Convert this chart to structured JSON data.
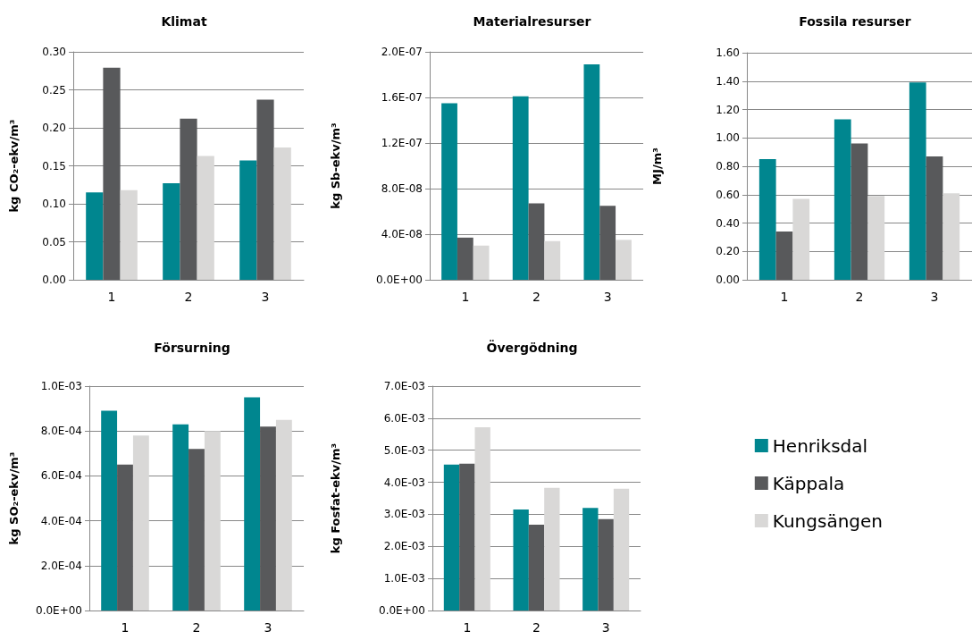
{
  "chart_data": [
    {
      "type": "bar",
      "title": "Klimat",
      "ylabel": "kg CO₂-ekv/m³",
      "categories": [
        "1",
        "2",
        "3"
      ],
      "grid": "y",
      "legend": false,
      "ylim": [
        0,
        0.3
      ],
      "yticks": [
        {
          "value": 0,
          "label": "0.00"
        },
        {
          "value": 0.05,
          "label": "0.05"
        },
        {
          "value": 0.1,
          "label": "0.10"
        },
        {
          "value": 0.15,
          "label": "0.15"
        },
        {
          "value": 0.2,
          "label": "0.20"
        },
        {
          "value": 0.25,
          "label": "0.25"
        },
        {
          "value": 0.3,
          "label": "0.30"
        }
      ],
      "series": [
        {
          "color": "#00868f",
          "values": [
            0.115,
            0.127,
            0.157
          ]
        },
        {
          "color": "#58595b",
          "values": [
            0.279,
            0.212,
            0.237
          ]
        },
        {
          "color": "#d9d8d7",
          "values": [
            0.118,
            0.163,
            0.174
          ]
        }
      ]
    },
    {
      "type": "bar",
      "title": "Materialresurser",
      "ylabel": "kg Sb-ekv/m³",
      "categories": [
        "1",
        "2",
        "3"
      ],
      "grid": "y",
      "legend": false,
      "ylim": [
        0,
        2e-07
      ],
      "yticks": [
        {
          "value": 0,
          "label": "0.0E+00"
        },
        {
          "value": 4e-08,
          "label": "4.0E-08"
        },
        {
          "value": 8e-08,
          "label": "8.0E-08"
        },
        {
          "value": 1.2e-07,
          "label": "1.2E-07"
        },
        {
          "value": 1.6e-07,
          "label": "1.6E-07"
        },
        {
          "value": 2e-07,
          "label": "2.0E-07"
        }
      ],
      "series": [
        {
          "color": "#00868f",
          "values": [
            1.55e-07,
            1.61e-07,
            1.89e-07
          ]
        },
        {
          "color": "#58595b",
          "values": [
            3.7e-08,
            6.7e-08,
            6.5e-08
          ]
        },
        {
          "color": "#d9d8d7",
          "values": [
            3e-08,
            3.4e-08,
            3.5e-08
          ]
        }
      ]
    },
    {
      "type": "bar",
      "title": "Fossila resurser",
      "ylabel": "MJ/m³",
      "categories": [
        "1",
        "2",
        "3"
      ],
      "grid": "y",
      "legend": false,
      "ylim": [
        0,
        1.6
      ],
      "yticks": [
        {
          "value": 0,
          "label": "0.00"
        },
        {
          "value": 0.2,
          "label": "0.20"
        },
        {
          "value": 0.4,
          "label": "0.40"
        },
        {
          "value": 0.6,
          "label": "0.60"
        },
        {
          "value": 0.8,
          "label": "0.80"
        },
        {
          "value": 1,
          "label": "1.00"
        },
        {
          "value": 1.2,
          "label": "1.20"
        },
        {
          "value": 1.4,
          "label": "1.40"
        },
        {
          "value": 1.6,
          "label": "1.60"
        }
      ],
      "series": [
        {
          "color": "#00868f",
          "values": [
            0.85,
            1.13,
            1.39
          ]
        },
        {
          "color": "#58595b",
          "values": [
            0.34,
            0.96,
            0.87
          ]
        },
        {
          "color": "#d9d8d7",
          "values": [
            0.57,
            0.59,
            0.61
          ]
        }
      ]
    },
    {
      "type": "bar",
      "title": "Försurning",
      "ylabel": "kg SO₂-ekv/m³",
      "categories": [
        "1",
        "2",
        "3"
      ],
      "grid": "y",
      "legend": false,
      "ylim": [
        0,
        0.001
      ],
      "yticks": [
        {
          "value": 0,
          "label": "0.0E+00"
        },
        {
          "value": 0.0002,
          "label": "2.0E-04"
        },
        {
          "value": 0.0004,
          "label": "4.0E-04"
        },
        {
          "value": 0.0006,
          "label": "6.0E-04"
        },
        {
          "value": 0.0008,
          "label": "8.0E-04"
        },
        {
          "value": 0.001,
          "label": "1.0E-03"
        }
      ],
      "series": [
        {
          "color": "#00868f",
          "values": [
            0.00089,
            0.00083,
            0.00095
          ]
        },
        {
          "color": "#58595b",
          "values": [
            0.00065,
            0.00072,
            0.00082
          ]
        },
        {
          "color": "#d9d8d7",
          "values": [
            0.00078,
            0.0008,
            0.00085
          ]
        }
      ]
    },
    {
      "type": "bar",
      "title": "Övergödning",
      "ylabel": "kg Fosfat-ekv/m³",
      "categories": [
        "1",
        "2",
        "3"
      ],
      "grid": "y",
      "legend": "right",
      "ylim": [
        0,
        0.007
      ],
      "yticks": [
        {
          "value": 0,
          "label": "0.0E+00"
        },
        {
          "value": 0.001,
          "label": "1.0E-03"
        },
        {
          "value": 0.002,
          "label": "2.0E-03"
        },
        {
          "value": 0.003,
          "label": "3.0E-03"
        },
        {
          "value": 0.004,
          "label": "4.0E-03"
        },
        {
          "value": 0.005,
          "label": "5.0E-03"
        },
        {
          "value": 0.006,
          "label": "6.0E-03"
        },
        {
          "value": 0.007,
          "label": "7.0E-03"
        }
      ],
      "series": [
        {
          "name": "Henriksdal",
          "color": "#00868f",
          "values": [
            0.00455,
            0.00315,
            0.0032
          ]
        },
        {
          "name": "Käppala",
          "color": "#58595b",
          "values": [
            0.00458,
            0.00268,
            0.00285
          ]
        },
        {
          "name": "Kungsängen",
          "color": "#d9d8d7",
          "values": [
            0.00572,
            0.00383,
            0.0038
          ]
        }
      ]
    }
  ]
}
